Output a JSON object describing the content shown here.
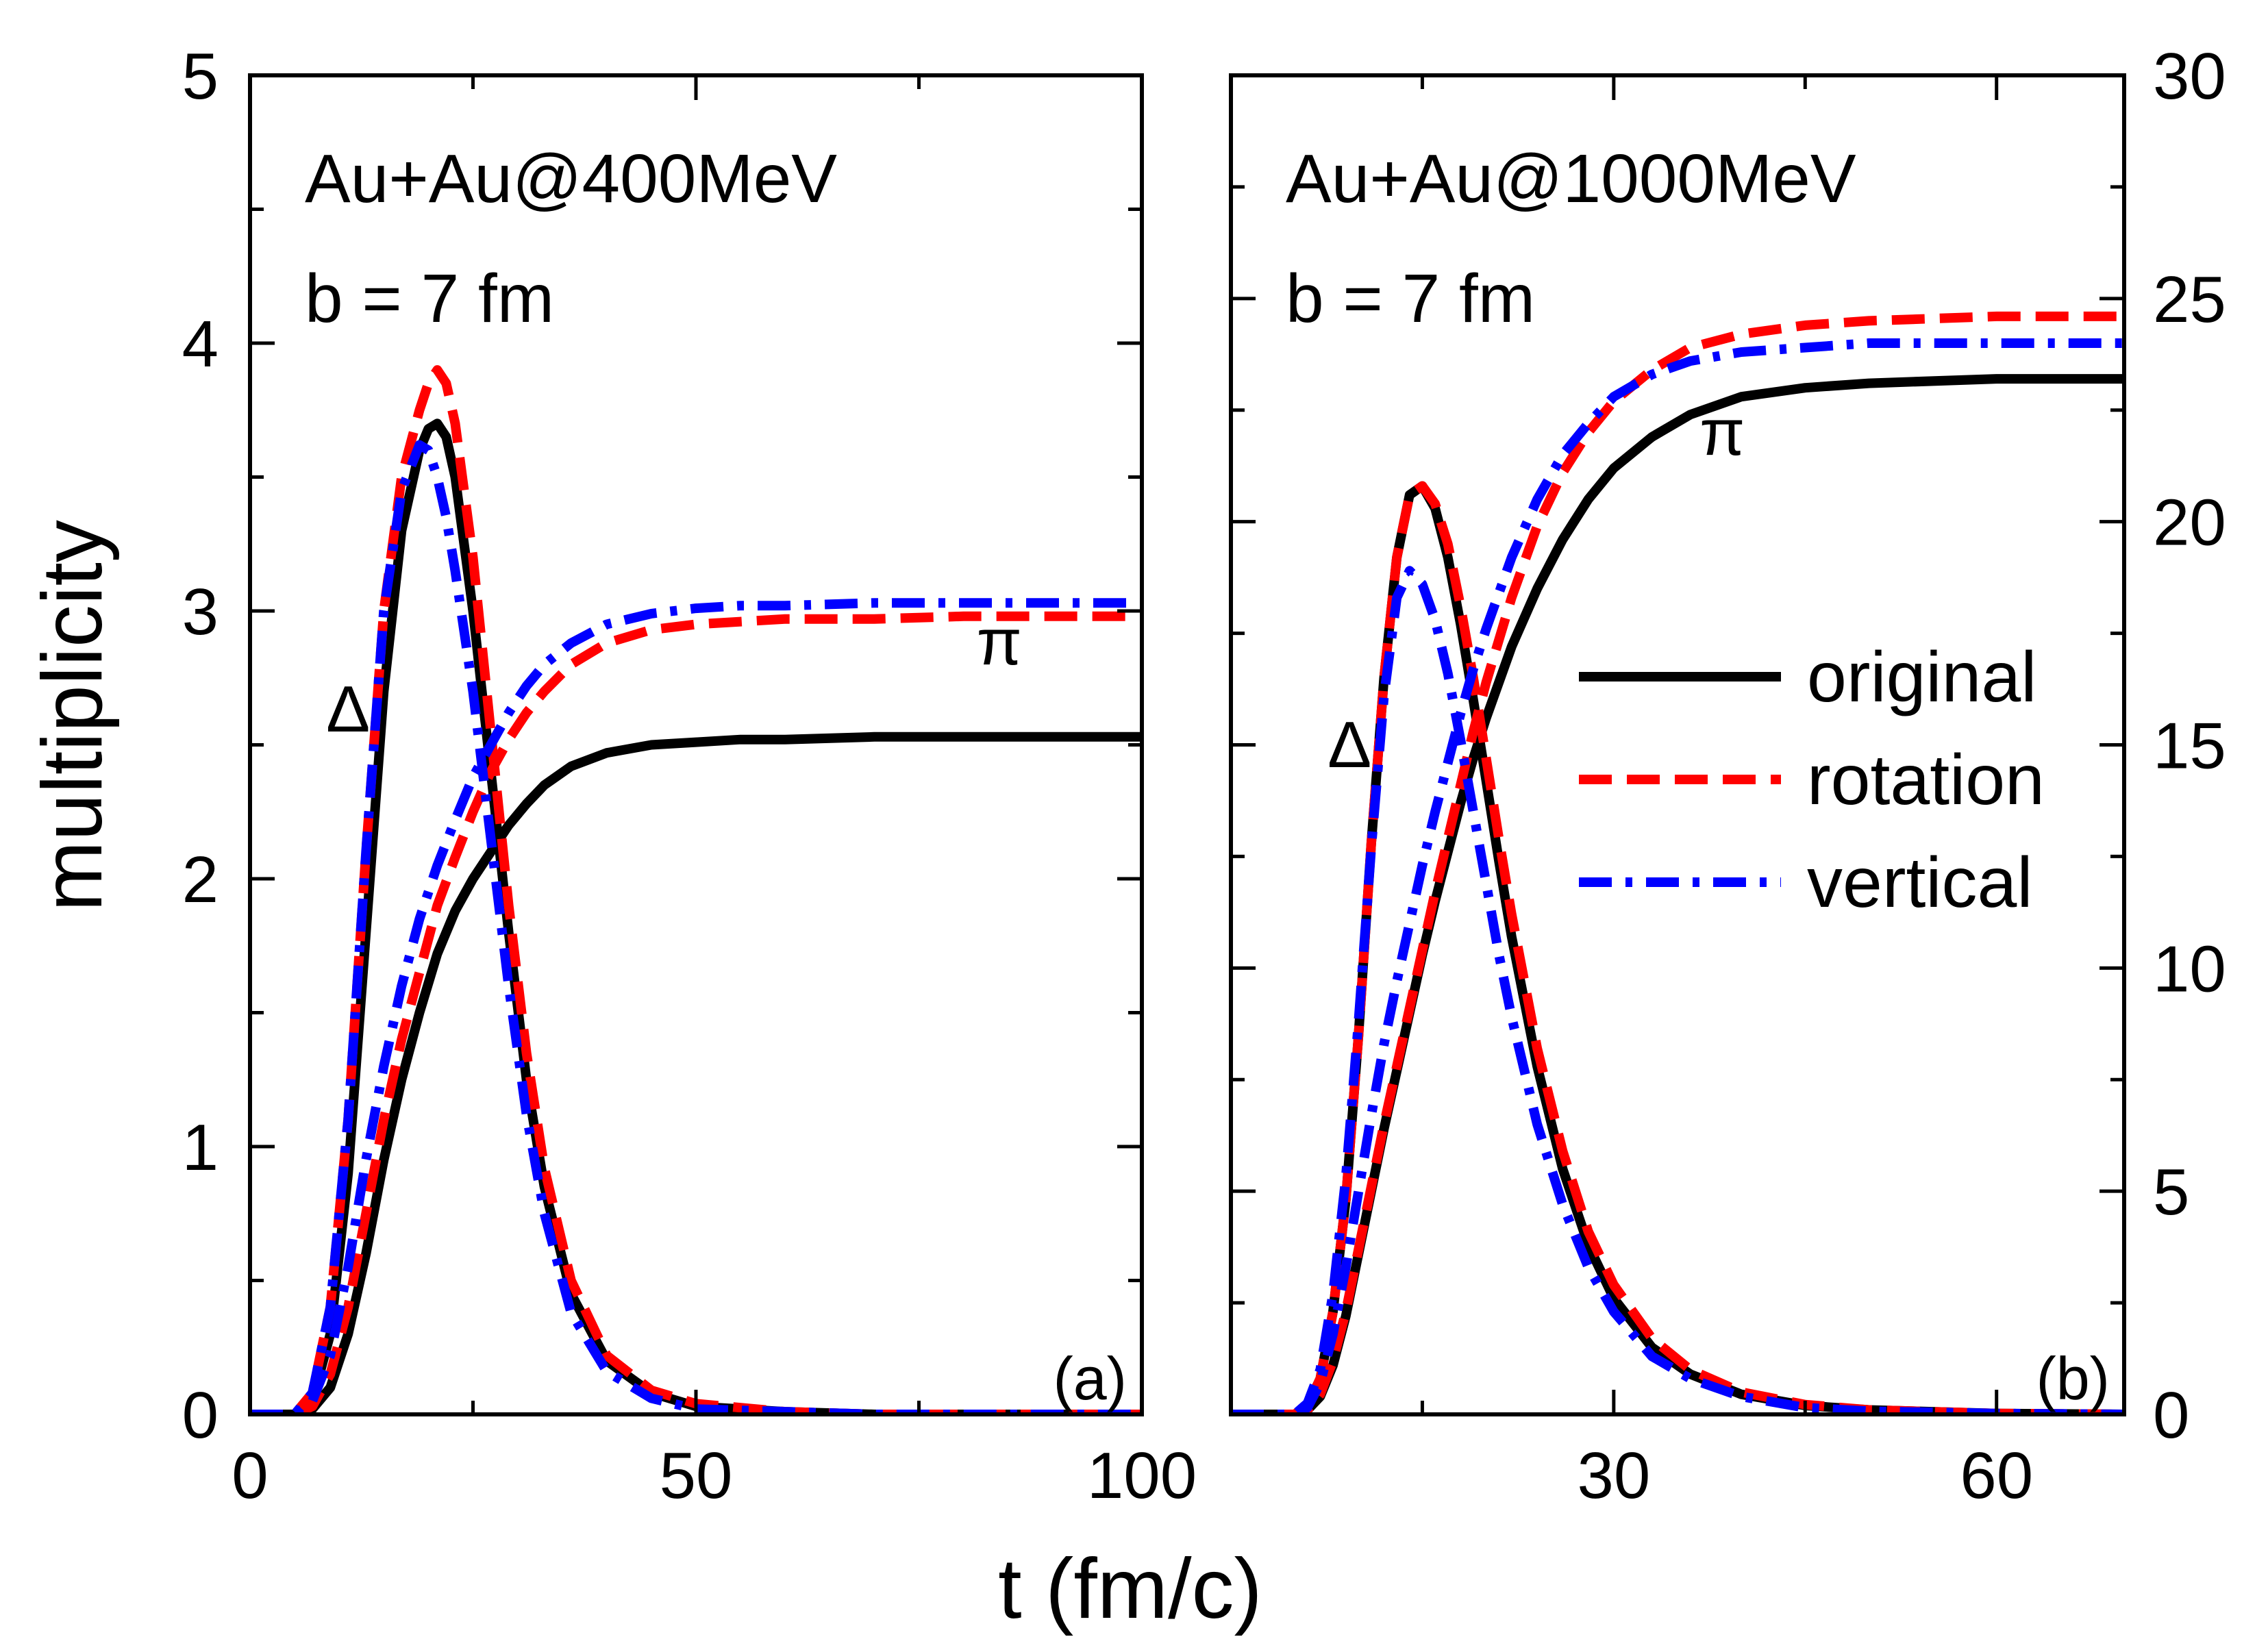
{
  "chart_data": [
    {
      "type": "line",
      "panel_label": "(a)",
      "annotation": [
        "Au+Au@400MeV",
        "b = 7 fm"
      ],
      "xlabel": "t (fm/c)",
      "ylabel": "multiplicity",
      "xlim": [
        0,
        100
      ],
      "ylim": [
        0,
        5
      ],
      "x_ticks": [
        0,
        50,
        100
      ],
      "x_minor_ticks": [
        25,
        75
      ],
      "y_ticks": [
        0,
        1,
        2,
        3,
        4,
        5
      ],
      "y_minor_ticks": [
        0.5,
        1.5,
        2.5,
        3.5,
        4.5
      ],
      "curve_labels": [
        {
          "text": "Δ",
          "x": 11,
          "y": 2.55
        },
        {
          "text": "π",
          "x": 84,
          "y": 2.8
        }
      ],
      "series": [
        {
          "name": "original",
          "particle": "Δ",
          "style": "solid",
          "x": [
            0,
            5,
            7,
            9,
            11,
            13,
            15,
            17,
            19,
            20,
            21,
            22,
            23,
            25,
            27,
            29,
            31,
            33,
            36,
            40,
            45,
            50,
            60,
            70,
            80,
            100
          ],
          "y": [
            0,
            0,
            0.05,
            0.3,
            0.9,
            1.8,
            2.7,
            3.3,
            3.6,
            3.68,
            3.7,
            3.65,
            3.5,
            3.0,
            2.4,
            1.8,
            1.25,
            0.85,
            0.45,
            0.2,
            0.08,
            0.03,
            0.01,
            0,
            0,
            0
          ]
        },
        {
          "name": "original",
          "particle": "π",
          "style": "solid",
          "x": [
            0,
            5,
            7,
            9,
            11,
            13,
            15,
            17,
            19,
            21,
            23,
            25,
            27,
            29,
            31,
            33,
            36,
            40,
            45,
            50,
            55,
            60,
            70,
            80,
            100
          ],
          "y": [
            0,
            0,
            0.02,
            0.1,
            0.3,
            0.6,
            0.95,
            1.25,
            1.5,
            1.72,
            1.88,
            2.0,
            2.1,
            2.2,
            2.28,
            2.35,
            2.42,
            2.47,
            2.5,
            2.51,
            2.52,
            2.52,
            2.53,
            2.53,
            2.53
          ]
        },
        {
          "name": "rotation",
          "particle": "Δ",
          "style": "dashed",
          "x": [
            0,
            5,
            7,
            9,
            11,
            13,
            15,
            17,
            19,
            20,
            21,
            22,
            23,
            25,
            27,
            29,
            31,
            33,
            36,
            40,
            45,
            50,
            60,
            70,
            80,
            100
          ],
          "y": [
            0,
            0,
            0.08,
            0.4,
            1.1,
            2.1,
            3.0,
            3.5,
            3.75,
            3.85,
            3.9,
            3.85,
            3.7,
            3.2,
            2.55,
            1.9,
            1.35,
            0.92,
            0.5,
            0.22,
            0.09,
            0.04,
            0.01,
            0,
            0,
            0
          ]
        },
        {
          "name": "rotation",
          "particle": "π",
          "style": "dashed",
          "x": [
            0,
            5,
            7,
            9,
            11,
            13,
            15,
            17,
            19,
            21,
            23,
            25,
            27,
            29,
            31,
            33,
            36,
            40,
            45,
            50,
            55,
            60,
            70,
            80,
            100
          ],
          "y": [
            0,
            0,
            0.03,
            0.15,
            0.4,
            0.75,
            1.1,
            1.4,
            1.65,
            1.9,
            2.08,
            2.25,
            2.4,
            2.52,
            2.62,
            2.7,
            2.8,
            2.88,
            2.93,
            2.95,
            2.96,
            2.97,
            2.97,
            2.98,
            2.98
          ]
        },
        {
          "name": "vertical",
          "particle": "Δ",
          "style": "dashdot",
          "x": [
            0,
            5,
            7,
            9,
            11,
            13,
            15,
            17,
            19,
            20,
            21,
            22,
            23,
            25,
            27,
            29,
            31,
            33,
            36,
            40,
            45,
            50,
            60,
            70,
            80,
            100
          ],
          "y": [
            0,
            0,
            0.08,
            0.4,
            1.1,
            2.1,
            3.0,
            3.45,
            3.62,
            3.6,
            3.5,
            3.35,
            3.15,
            2.7,
            2.15,
            1.6,
            1.12,
            0.75,
            0.38,
            0.16,
            0.06,
            0.02,
            0.01,
            0,
            0,
            0
          ]
        },
        {
          "name": "vertical",
          "particle": "π",
          "style": "dashdot",
          "x": [
            0,
            5,
            7,
            9,
            11,
            13,
            15,
            17,
            19,
            21,
            23,
            25,
            27,
            29,
            31,
            33,
            36,
            40,
            45,
            50,
            55,
            60,
            70,
            80,
            100
          ],
          "y": [
            0,
            0,
            0.05,
            0.22,
            0.55,
            0.95,
            1.3,
            1.6,
            1.85,
            2.05,
            2.22,
            2.38,
            2.5,
            2.62,
            2.72,
            2.8,
            2.88,
            2.95,
            2.99,
            3.01,
            3.02,
            3.02,
            3.03,
            3.03,
            3.03
          ]
        }
      ]
    },
    {
      "type": "line",
      "panel_label": "(b)",
      "annotation": [
        "Au+Au@1000MeV",
        "b = 7 fm"
      ],
      "xlabel": "t (fm/c)",
      "ylabel": "",
      "xlim": [
        0,
        70
      ],
      "ylim": [
        0,
        30
      ],
      "x_ticks": [
        30,
        60
      ],
      "x_minor_ticks": [
        15,
        45
      ],
      "y_ticks": [
        0,
        5,
        10,
        15,
        20,
        25,
        30
      ],
      "y_minor_ticks": [
        2.5,
        7.5,
        12.5,
        17.5,
        22.5,
        27.5
      ],
      "curve_labels": [
        {
          "text": "Δ",
          "x": 9.3,
          "y": 14.5
        },
        {
          "text": "π",
          "x": 38.5,
          "y": 21.5
        }
      ],
      "legend": {
        "position": "center-right",
        "entries": [
          "original",
          "rotation",
          "vertical"
        ]
      },
      "series": [
        {
          "name": "original",
          "particle": "Δ",
          "style": "solid",
          "x": [
            0,
            5,
            6,
            7,
            8,
            9,
            10,
            11,
            12,
            13,
            14,
            15,
            16,
            17,
            18,
            19,
            20,
            21,
            22,
            24,
            26,
            28,
            30,
            33,
            36,
            40,
            45,
            50,
            60,
            70
          ],
          "y": [
            0,
            0,
            0.2,
            0.8,
            2.3,
            4.8,
            8.5,
            12.8,
            16.5,
            19.2,
            20.6,
            20.8,
            20.3,
            19.2,
            17.7,
            16.0,
            14.2,
            12.4,
            10.7,
            7.8,
            5.5,
            3.8,
            2.6,
            1.5,
            0.9,
            0.45,
            0.2,
            0.1,
            0.02,
            0
          ]
        },
        {
          "name": "original",
          "particle": "π",
          "style": "solid",
          "x": [
            0,
            5,
            6,
            7,
            8,
            9,
            10,
            11,
            12,
            13,
            14,
            15,
            16,
            17,
            18,
            19,
            20,
            22,
            24,
            26,
            28,
            30,
            33,
            36,
            40,
            45,
            50,
            60,
            70
          ],
          "y": [
            0,
            0,
            0.1,
            0.4,
            1.1,
            2.2,
            3.6,
            5.0,
            6.4,
            7.7,
            9.0,
            10.3,
            11.5,
            12.6,
            13.7,
            14.7,
            15.6,
            17.2,
            18.5,
            19.6,
            20.5,
            21.2,
            21.9,
            22.4,
            22.8,
            23.0,
            23.1,
            23.2,
            23.2
          ]
        },
        {
          "name": "rotation",
          "particle": "Δ",
          "style": "dashed",
          "x": [
            0,
            5,
            6,
            7,
            8,
            9,
            10,
            11,
            12,
            13,
            14,
            15,
            16,
            17,
            18,
            19,
            20,
            21,
            22,
            24,
            26,
            28,
            30,
            33,
            36,
            40,
            45,
            50,
            60,
            70
          ],
          "y": [
            0,
            0,
            0.2,
            0.8,
            2.3,
            4.8,
            8.5,
            12.8,
            16.5,
            19.2,
            20.6,
            20.8,
            20.4,
            19.5,
            18.1,
            16.5,
            14.7,
            12.9,
            11.2,
            8.2,
            5.9,
            4.1,
            2.9,
            1.7,
            1.0,
            0.5,
            0.22,
            0.1,
            0.02,
            0
          ]
        },
        {
          "name": "rotation",
          "particle": "π",
          "style": "dashed",
          "x": [
            0,
            5,
            6,
            7,
            8,
            9,
            10,
            11,
            12,
            13,
            14,
            15,
            16,
            17,
            18,
            19,
            20,
            22,
            24,
            26,
            28,
            30,
            33,
            36,
            40,
            45,
            50,
            60,
            70
          ],
          "y": [
            0,
            0,
            0.1,
            0.45,
            1.2,
            2.3,
            3.7,
            5.1,
            6.5,
            7.8,
            9.1,
            10.4,
            11.7,
            12.9,
            14.1,
            15.3,
            16.4,
            18.3,
            19.9,
            21.1,
            22.0,
            22.7,
            23.4,
            23.9,
            24.2,
            24.4,
            24.5,
            24.6,
            24.6
          ]
        },
        {
          "name": "vertical",
          "particle": "Δ",
          "style": "dashdot",
          "x": [
            0,
            5,
            6,
            7,
            8,
            9,
            10,
            11,
            12,
            13,
            14,
            15,
            16,
            17,
            18,
            19,
            20,
            21,
            22,
            24,
            26,
            28,
            30,
            33,
            36,
            40,
            45,
            50,
            60,
            70
          ],
          "y": [
            0,
            0,
            0.25,
            1.0,
            2.7,
            5.3,
            8.8,
            12.7,
            16.1,
            18.3,
            18.9,
            18.6,
            17.8,
            16.6,
            15.1,
            13.5,
            11.9,
            10.3,
            8.9,
            6.5,
            4.7,
            3.3,
            2.3,
            1.3,
            0.8,
            0.4,
            0.15,
            0.07,
            0.02,
            0
          ]
        },
        {
          "name": "vertical",
          "particle": "π",
          "style": "dashdot",
          "x": [
            0,
            5,
            6,
            7,
            8,
            9,
            10,
            11,
            12,
            13,
            14,
            15,
            16,
            17,
            18,
            19,
            20,
            22,
            24,
            26,
            28,
            30,
            33,
            36,
            40,
            45,
            50,
            60,
            70
          ],
          "y": [
            0,
            0,
            0.15,
            0.7,
            1.8,
            3.3,
            5.0,
            6.7,
            8.3,
            9.7,
            11.0,
            12.3,
            13.5,
            14.6,
            15.7,
            16.7,
            17.6,
            19.2,
            20.5,
            21.5,
            22.2,
            22.8,
            23.3,
            23.6,
            23.8,
            23.9,
            24.0,
            24.0,
            24.0
          ]
        }
      ]
    }
  ]
}
